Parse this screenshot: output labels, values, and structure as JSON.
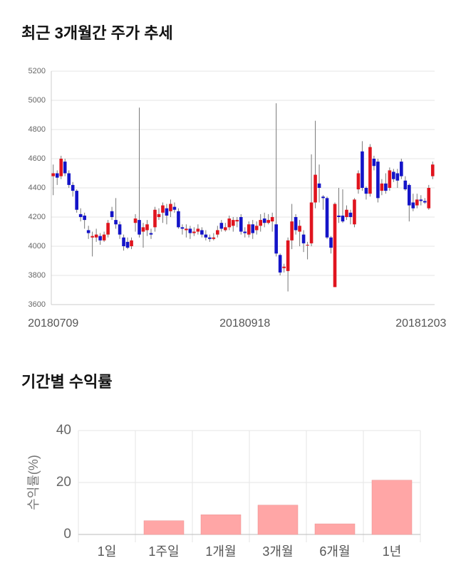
{
  "chart_data": [
    {
      "type": "candlestick",
      "title": "최근 3개월간 주가 추세",
      "categories": [
        "20180709",
        null,
        null,
        null,
        null,
        null,
        null,
        null,
        null,
        null,
        null,
        null,
        null,
        null,
        null,
        null,
        null,
        null,
        null,
        null,
        null,
        null,
        null,
        null,
        null,
        null,
        null,
        null,
        null,
        null,
        null,
        null,
        null,
        null,
        null,
        null,
        null,
        null,
        null,
        null,
        null,
        null,
        null,
        null,
        null,
        null,
        null,
        null,
        null,
        "20180918",
        null,
        null,
        null,
        null,
        null,
        null,
        null,
        null,
        null,
        null,
        null,
        null,
        null,
        null,
        null,
        null,
        null,
        null,
        null,
        null,
        null,
        null,
        null,
        null,
        null,
        null,
        null,
        null,
        null,
        null,
        null,
        null,
        null,
        null,
        null,
        null,
        null,
        null,
        null,
        null,
        null,
        null,
        null,
        null,
        "20181203",
        null,
        null,
        null
      ],
      "open": [
        4480,
        4500,
        4480,
        4580,
        4500,
        4420,
        4380,
        4220,
        4210,
        4110,
        4060,
        4060,
        4070,
        4040,
        4080,
        4240,
        4180,
        4150,
        4060,
        4030,
        4000,
        4160,
        4180,
        4100,
        4110,
        4090,
        4130,
        4200,
        4230,
        4260,
        4240,
        4270,
        4240,
        4130,
        4110,
        4120,
        4090,
        4100,
        4110,
        4080,
        4060,
        4050,
        4080,
        4160,
        4110,
        4130,
        4140,
        4170,
        4200,
        4100,
        4080,
        4150,
        4110,
        4140,
        4190,
        4160,
        4170,
        4150,
        3940,
        3850,
        3830,
        4040,
        4200,
        4100,
        4080,
        4010,
        4020,
        4300,
        4430,
        4340,
        4330,
        4060,
        3720,
        4210,
        4210,
        4200,
        4230,
        4150,
        4390,
        4650,
        4400,
        4360,
        4600,
        4580,
        4380,
        4430,
        4400,
        4510,
        4500,
        4580,
        4450,
        4420,
        4300,
        4280,
        4320,
        4310,
        4260,
        4480
      ],
      "high": [
        4560,
        4520,
        4620,
        4600,
        4520,
        4440,
        4390,
        4260,
        4230,
        4140,
        4100,
        4120,
        4090,
        4100,
        4180,
        4270,
        4330,
        4170,
        4080,
        4060,
        4060,
        4220,
        4950,
        4160,
        4180,
        4120,
        4270,
        4260,
        4300,
        4290,
        4320,
        4300,
        4260,
        4150,
        4150,
        4140,
        4130,
        4150,
        4130,
        4110,
        4080,
        4090,
        4140,
        4180,
        4160,
        4210,
        4200,
        4200,
        4220,
        4130,
        4170,
        4180,
        4170,
        4220,
        4230,
        4220,
        4230,
        4980,
        3950,
        3880,
        4060,
        4290,
        4220,
        4180,
        4110,
        4030,
        4630,
        4860,
        4560,
        4350,
        4340,
        4070,
        4300,
        4400,
        4390,
        4280,
        4250,
        4330,
        4520,
        4720,
        4410,
        4700,
        4620,
        4600,
        4460,
        4500,
        4540,
        4530,
        4530,
        4600,
        4480,
        4430,
        4360,
        4360,
        4350,
        4330,
        4420,
        4580
      ],
      "low": [
        4350,
        4420,
        4460,
        4480,
        4400,
        4340,
        4230,
        4170,
        4120,
        4050,
        3930,
        4030,
        4010,
        4030,
        4060,
        4180,
        4120,
        4050,
        3970,
        3980,
        3980,
        4100,
        4060,
        3990,
        4070,
        4050,
        4100,
        4180,
        4160,
        4150,
        4200,
        4230,
        4120,
        4080,
        4060,
        4050,
        4070,
        4080,
        4060,
        4040,
        4030,
        4040,
        4060,
        4100,
        4100,
        4110,
        4100,
        4130,
        4080,
        4060,
        4060,
        4050,
        4080,
        4100,
        4130,
        4150,
        4100,
        3930,
        3800,
        3820,
        3690,
        3980,
        4080,
        4000,
        3960,
        3910,
        4000,
        4260,
        4300,
        4250,
        4050,
        3950,
        3720,
        4160,
        4160,
        4180,
        4150,
        4130,
        4360,
        4380,
        4320,
        4340,
        4520,
        4300,
        4350,
        4360,
        4380,
        4440,
        4400,
        4460,
        4380,
        4170,
        4240,
        4260,
        4280,
        4290,
        4250,
        4460
      ],
      "close": [
        4500,
        4470,
        4600,
        4500,
        4420,
        4380,
        4250,
        4200,
        4180,
        4090,
        4070,
        4080,
        4040,
        4080,
        4160,
        4200,
        4150,
        4080,
        4000,
        3990,
        4040,
        4190,
        4080,
        4130,
        4150,
        4080,
        4250,
        4220,
        4280,
        4210,
        4290,
        4250,
        4130,
        4120,
        4120,
        4090,
        4100,
        4120,
        4080,
        4060,
        4050,
        4060,
        4110,
        4120,
        4130,
        4190,
        4180,
        4180,
        4100,
        4090,
        4150,
        4090,
        4140,
        4180,
        4160,
        4180,
        4200,
        3950,
        3820,
        3860,
        4040,
        4170,
        4110,
        4140,
        4020,
        4010,
        4300,
        4490,
        4400,
        4330,
        4060,
        3990,
        4290,
        4200,
        4170,
        4250,
        4200,
        4320,
        4500,
        4400,
        4360,
        4680,
        4550,
        4330,
        4430,
        4380,
        4520,
        4460,
        4450,
        4480,
        4390,
        4280,
        4260,
        4320,
        4310,
        4300,
        4400,
        4560
      ],
      "up_color": "#e0141e",
      "down_color": "#1414c8",
      "ylim": [
        3600,
        5200
      ],
      "yticks": [
        3600,
        3800,
        4000,
        4200,
        4400,
        4600,
        4800,
        5000,
        5200
      ],
      "grid": true
    },
    {
      "type": "bar",
      "title": "기간별 수익률",
      "y_label": "수익률(%)",
      "categories": [
        "1일",
        "1주일",
        "1개월",
        "3개월",
        "6개월",
        "1년"
      ],
      "values": [
        0,
        5.3,
        7.6,
        11.3,
        4.1,
        20.9
      ],
      "color": "#ffa6a6",
      "ylim": [
        -3,
        40
      ],
      "yticks": [
        0,
        20,
        40
      ],
      "grid": true
    }
  ]
}
